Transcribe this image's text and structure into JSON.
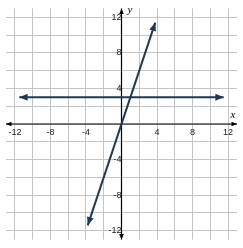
{
  "chart_data": {
    "type": "line",
    "x_label": "x",
    "y_label": "y",
    "series": [
      {
        "color": "#1c3a57",
        "marker": "arrow",
        "line_style": "solid",
        "x": [
          -11.5,
          11.5
        ],
        "values": [
          3,
          3
        ]
      },
      {
        "color": "#1c3a57",
        "marker": "arrow",
        "line_style": "solid",
        "x": [
          -3.8,
          3.8
        ],
        "values": [
          -11.4,
          11.4
        ]
      }
    ],
    "xlim": [
      -13,
      13
    ],
    "xticks": [
      -12,
      -8,
      -4,
      4,
      8,
      12
    ],
    "ylim": [
      -13,
      13
    ],
    "yticks": [
      -12,
      -8,
      -4,
      4,
      8,
      12
    ],
    "grid": true
  }
}
